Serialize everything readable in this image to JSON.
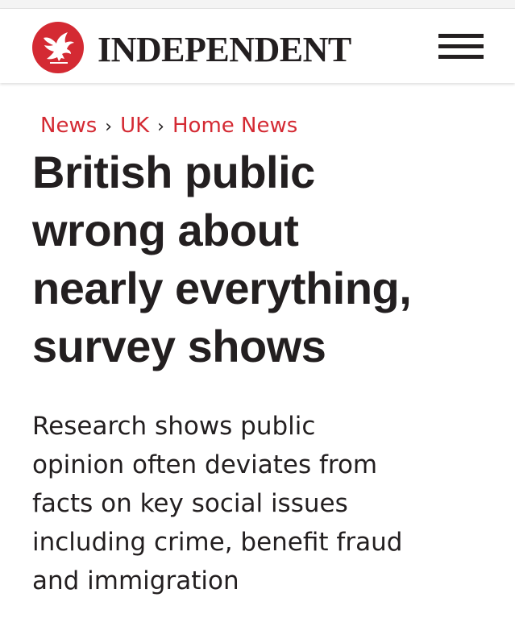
{
  "colors": {
    "brand_red": "#d42a33",
    "text_dark": "#231f20",
    "background": "#ffffff"
  },
  "header": {
    "logo_icon": "eagle-icon",
    "brand_name": "INDEPENDENT",
    "menu_icon": "hamburger-menu-icon"
  },
  "breadcrumb": {
    "items": [
      "News",
      "UK",
      "Home News"
    ],
    "separator": "›"
  },
  "article": {
    "headline_lines": [
      "British public",
      "wrong about",
      "nearly everything,",
      "survey shows"
    ],
    "standfirst_lines": [
      "Research shows public",
      "opinion often deviates from",
      "facts on key social issues",
      "including crime, benefit fraud",
      "and immigration"
    ]
  }
}
